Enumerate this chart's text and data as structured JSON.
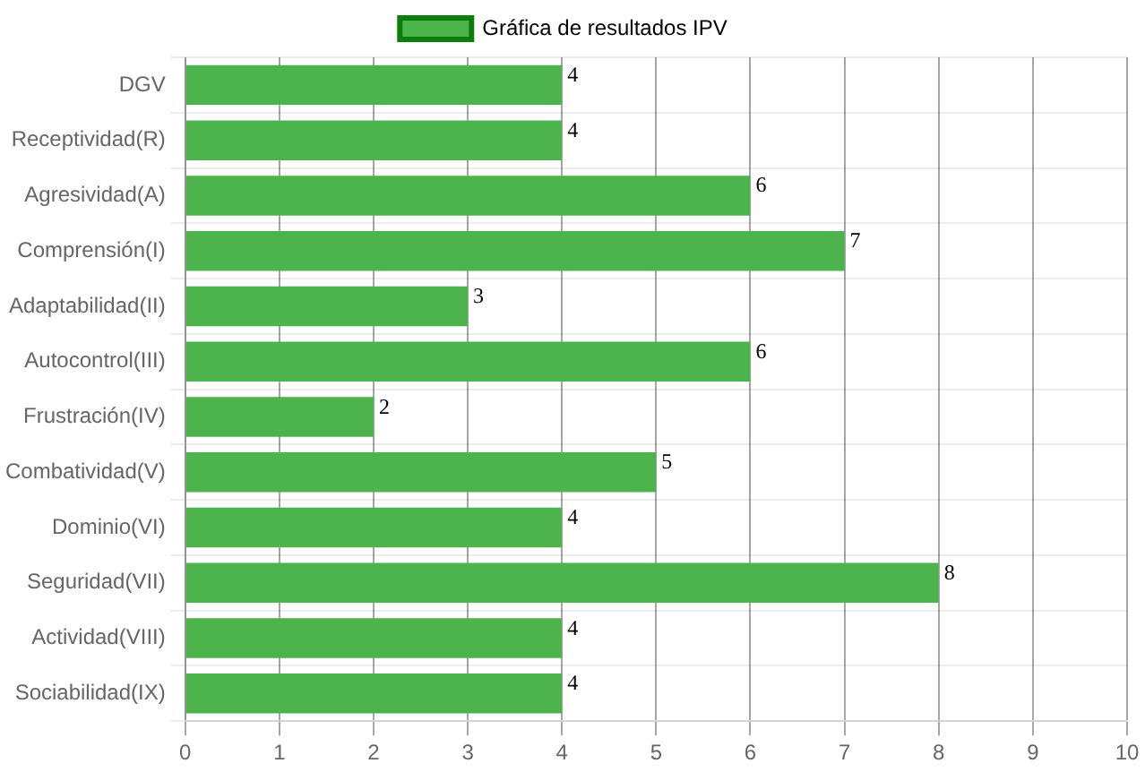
{
  "chart_data": {
    "type": "bar",
    "orientation": "horizontal",
    "categories": [
      "DGV",
      "Receptividad(R)",
      "Agresividad(A)",
      "Comprensión(I)",
      "Adaptabilidad(II)",
      "Autocontrol(III)",
      "Frustración(IV)",
      "Combatividad(V)",
      "Dominio(VI)",
      "Seguridad(VII)",
      "Actividad(VIII)",
      "Sociabilidad(IX)"
    ],
    "series": [
      {
        "name": "Gráfica de resultados IPV",
        "color": "#4db34d",
        "values": [
          4,
          4,
          6,
          7,
          3,
          6,
          2,
          5,
          4,
          8,
          4,
          4
        ]
      }
    ],
    "xlim": [
      0,
      10
    ],
    "xticks": [
      0,
      1,
      2,
      3,
      4,
      5,
      6,
      7,
      8,
      9,
      10
    ],
    "grid": true,
    "legend": "top",
    "data_labels": true
  }
}
